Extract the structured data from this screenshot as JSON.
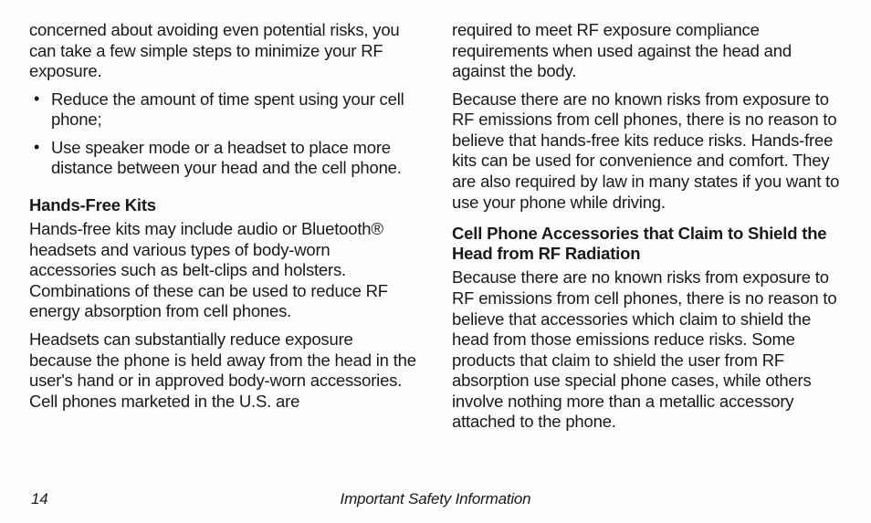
{
  "left": {
    "intro": "concerned about avoiding even potential risks, you can take a few simple steps to minimize your RF exposure.",
    "bullets": [
      "Reduce the amount of time spent using your cell phone;",
      "Use speaker mode or a headset to place more distance between your head and the cell phone."
    ],
    "heading1": "Hands-Free Kits",
    "p1": "Hands-free kits may include audio or Bluetooth® headsets and various types of body-worn accessories such as belt-clips and holsters. Combinations of these can be used to reduce RF energy absorption from cell phones.",
    "p2": "Headsets can substantially reduce exposure because the phone is held away from the head in the user's hand or in approved body-worn accessories. Cell phones marketed in the U.S. are"
  },
  "right": {
    "p1": "required to meet RF exposure compliance requirements when used against the head and against the body.",
    "p2": "Because there are no known risks from exposure to RF emissions from cell phones, there is no reason to believe that hands-free kits reduce risks. Hands-free kits can be used for convenience and comfort. They are also required by law in many states if you want to use your phone while driving.",
    "heading1": "Cell Phone Accessories that Claim to Shield the Head from RF Radiation",
    "p3": "Because there are no known risks from exposure to RF emissions from cell phones, there is no reason to believe that accessories which claim to shield the head from those emissions reduce risks. Some products that claim to shield the user from RF absorption use special phone cases, while others involve nothing more than a metallic accessory attached to the phone."
  },
  "footer": {
    "page": "14",
    "title": "Important Safety Information"
  }
}
